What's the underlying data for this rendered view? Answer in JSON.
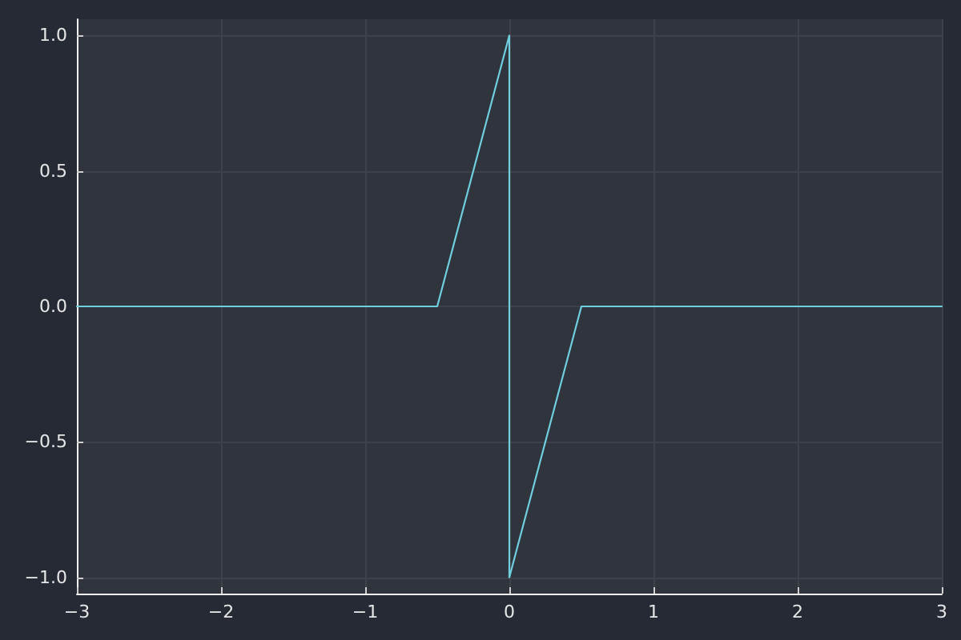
{
  "chart_data": {
    "type": "line",
    "x": [
      -3,
      -0.5,
      0,
      0,
      0.5,
      3
    ],
    "series": [
      {
        "color": "#6fcfdf",
        "values": [
          0,
          0,
          1,
          -1,
          0,
          0
        ]
      }
    ],
    "xlim": [
      -3,
      3
    ],
    "xticks": [
      {
        "value": -3,
        "label": "−3"
      },
      {
        "value": -2,
        "label": "−2"
      },
      {
        "value": -1,
        "label": "−1"
      },
      0,
      1,
      2,
      3
    ],
    "ylim": [
      -1.06,
      1.06
    ],
    "yticks": [
      {
        "value": -1,
        "label": "−1.0"
      },
      {
        "value": -0.5,
        "label": "−0.5"
      },
      {
        "value": 0,
        "label": "0.0"
      },
      {
        "value": 0.5,
        "label": "0.5"
      },
      {
        "value": 1,
        "label": "1.0"
      }
    ],
    "grid": true,
    "marker": "none",
    "line_style": "solid"
  }
}
